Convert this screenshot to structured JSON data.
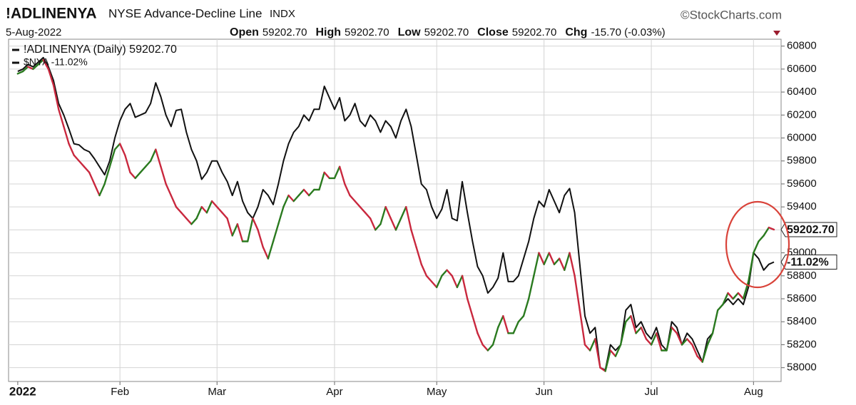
{
  "chart_data": {
    "type": "line",
    "title": "!ADLINENYA",
    "subtitle": "NYSE Advance-Decline Line",
    "exchange": "INDX",
    "source": "©StockCharts.com",
    "date": "5-Aug-2022",
    "quote": [
      {
        "label": "Open",
        "value": "59202.70"
      },
      {
        "label": "High",
        "value": "59202.70"
      },
      {
        "label": "Low",
        "value": "59202.70"
      },
      {
        "label": "Close",
        "value": "59202.70"
      },
      {
        "label": "Chg",
        "value": "-15.70 (-0.03%)"
      }
    ],
    "series": [
      {
        "name": "!ADLINENYA (Daily) 59202.70",
        "end_label": "59202.70",
        "up_color": "#2a7a1f",
        "down_color": "#c9283e",
        "color": "#111111",
        "values": [
          60560,
          60580,
          60620,
          60600,
          60640,
          60680,
          60600,
          60460,
          60250,
          60100,
          59950,
          59850,
          59800,
          59750,
          59700,
          59600,
          59500,
          59600,
          59750,
          59900,
          59950,
          59850,
          59700,
          59650,
          59700,
          59750,
          59800,
          59900,
          59750,
          59600,
          59500,
          59400,
          59350,
          59300,
          59250,
          59300,
          59400,
          59350,
          59450,
          59400,
          59350,
          59300,
          59150,
          59250,
          59100,
          59100,
          59300,
          59200,
          59050,
          58950,
          59100,
          59250,
          59400,
          59500,
          59450,
          59500,
          59550,
          59500,
          59550,
          59550,
          59700,
          59650,
          59650,
          59750,
          59600,
          59500,
          59450,
          59400,
          59350,
          59300,
          59200,
          59250,
          59400,
          59300,
          59200,
          59300,
          59400,
          59200,
          59050,
          58900,
          58800,
          58750,
          58700,
          58800,
          58850,
          58800,
          58700,
          58800,
          58600,
          58450,
          58300,
          58200,
          58150,
          58200,
          58350,
          58450,
          58300,
          58300,
          58400,
          58450,
          58600,
          58800,
          59000,
          58900,
          59000,
          58900,
          58950,
          58850,
          59000,
          58800,
          58500,
          58200,
          58150,
          58250,
          58000,
          57970,
          58150,
          58100,
          58200,
          58400,
          58450,
          58300,
          58350,
          58250,
          58200,
          58300,
          58150,
          58150,
          58350,
          58300,
          58200,
          58250,
          58200,
          58100,
          58050,
          58200,
          58300,
          58500,
          58550,
          58650,
          58600,
          58650,
          58600,
          58750,
          59000,
          59100,
          59150,
          59220,
          59202.7
        ]
      },
      {
        "name": "$NYA -11.02%",
        "end_label": "-11.02%",
        "color": "#111111",
        "values": [
          60580,
          60600,
          60640,
          60620,
          60660,
          60700,
          60620,
          60500,
          60300,
          60200,
          60080,
          59950,
          59940,
          59900,
          59880,
          59820,
          59750,
          59680,
          59800,
          60000,
          60150,
          60250,
          60300,
          60180,
          60200,
          60220,
          60300,
          60480,
          60360,
          60200,
          60100,
          60240,
          60250,
          60050,
          59900,
          59800,
          59640,
          59700,
          59800,
          59800,
          59700,
          59620,
          59500,
          59620,
          59450,
          59350,
          59300,
          59400,
          59550,
          59500,
          59420,
          59600,
          59800,
          59950,
          60050,
          60100,
          60200,
          60150,
          60250,
          60250,
          60450,
          60350,
          60250,
          60350,
          60150,
          60200,
          60300,
          60150,
          60100,
          60200,
          60150,
          60050,
          60150,
          60100,
          60000,
          60150,
          60250,
          60100,
          59850,
          59600,
          59550,
          59400,
          59300,
          59380,
          59550,
          59300,
          59280,
          59620,
          59350,
          59100,
          58880,
          58800,
          58650,
          58700,
          58780,
          59000,
          58750,
          58750,
          58800,
          58950,
          59100,
          59300,
          59450,
          59400,
          59550,
          59450,
          59350,
          59500,
          59560,
          59350,
          58900,
          58450,
          58300,
          58350,
          58000,
          57980,
          58200,
          58150,
          58200,
          58500,
          58550,
          58350,
          58400,
          58300,
          58250,
          58350,
          58200,
          58150,
          58400,
          58350,
          58200,
          58300,
          58250,
          58150,
          58050,
          58250,
          58300,
          58500,
          58550,
          58600,
          58550,
          58600,
          58550,
          58700,
          59000,
          58950,
          58850,
          58900,
          58920
        ]
      }
    ],
    "xlim": [
      -1.8,
      149.4
    ],
    "xticks": [
      {
        "value": 0,
        "label": "2022"
      },
      {
        "value": 20,
        "label": "Feb"
      },
      {
        "value": 39,
        "label": "Mar"
      },
      {
        "value": 62,
        "label": "Apr"
      },
      {
        "value": 82,
        "label": "May"
      },
      {
        "value": 103,
        "label": "Jun"
      },
      {
        "value": 124,
        "label": "Jul"
      },
      {
        "value": 144,
        "label": "Aug"
      }
    ],
    "ylim": [
      57880,
      60860
    ],
    "yticks": [
      58000,
      58200,
      58400,
      58600,
      58800,
      59000,
      59200,
      59400,
      59600,
      59800,
      60000,
      60200,
      60400,
      60600,
      60800
    ],
    "grid": true,
    "legend": "top-left"
  }
}
